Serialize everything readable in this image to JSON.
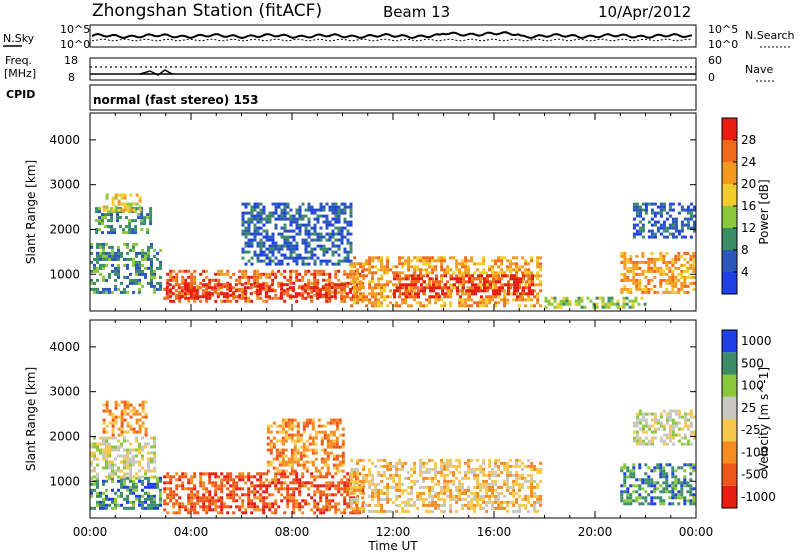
{
  "header": {
    "station": "Zhongshan Station (fitACF)",
    "beam": "Beam 13",
    "date": "10/Apr/2012"
  },
  "noise_panel": {
    "left_label": "N.Sky",
    "left_ticks": [
      "10^5",
      "10^0"
    ],
    "right_label": "N.Search",
    "right_ticks": [
      "10^5",
      "10^0"
    ]
  },
  "freq_panel": {
    "left_label_1": "Freq.",
    "left_label_2": "[MHz]",
    "left_ticks": [
      "18",
      "8"
    ],
    "right_label": "Nave",
    "right_ticks": [
      "60",
      "0"
    ]
  },
  "cpid": {
    "label": "CPID",
    "mode": "normal (fast stereo) 153"
  },
  "x_axis": {
    "ticks": [
      "00:00",
      "04:00",
      "08:00",
      "12:00",
      "16:00",
      "20:00",
      "00:00"
    ],
    "label": "Time UT"
  },
  "colors": {
    "power": [
      "#1f3fe8",
      "#2a57b8",
      "#3c8c68",
      "#8cc83c",
      "#f2cc2a",
      "#f39a1e",
      "#f06a1c",
      "#e81c12"
    ],
    "velocity": [
      "#e81c12",
      "#f0561a",
      "#f48c20",
      "#f8c84c",
      "#c8c8c0",
      "#8cc83c",
      "#3c8c68",
      "#1f3fe8"
    ]
  },
  "chart_data": [
    {
      "type": "heatmap",
      "quantity": "Power",
      "ylabel": "Slant Range [km]",
      "y_ticks": [
        1000,
        2000,
        3000,
        4000
      ],
      "ylim": [
        180,
        4600
      ],
      "xlim_hours": [
        0,
        24
      ],
      "colorbar_label": "Power [dB]",
      "colorbar_ticks": [
        4,
        8,
        12,
        16,
        20,
        24,
        28
      ],
      "regions": [
        {
          "t0": 0.0,
          "t1": 2.8,
          "r0": 600,
          "r1": 1700,
          "level": 2
        },
        {
          "t0": 0.2,
          "t1": 2.4,
          "r0": 1900,
          "r1": 2500,
          "level": 2
        },
        {
          "t0": 0.5,
          "t1": 2.0,
          "r0": 2400,
          "r1": 2800,
          "level": 4
        },
        {
          "t0": 2.9,
          "t1": 10.8,
          "r0": 400,
          "r1": 1100,
          "level": 6
        },
        {
          "t0": 3.0,
          "t1": 10.5,
          "r0": 500,
          "r1": 800,
          "level": 7
        },
        {
          "t0": 6.0,
          "t1": 10.3,
          "r0": 1200,
          "r1": 2600,
          "level": 1
        },
        {
          "t0": 10.3,
          "t1": 17.8,
          "r0": 300,
          "r1": 1400,
          "level": 5
        },
        {
          "t0": 12.0,
          "t1": 17.5,
          "r0": 500,
          "r1": 1000,
          "level": 7
        },
        {
          "t0": 18.0,
          "t1": 22.0,
          "r0": 250,
          "r1": 500,
          "level": 3
        },
        {
          "t0": 21.0,
          "t1": 23.9,
          "r0": 600,
          "r1": 1500,
          "level": 5
        },
        {
          "t0": 21.5,
          "t1": 23.9,
          "r0": 1800,
          "r1": 2600,
          "level": 1
        }
      ]
    },
    {
      "type": "heatmap",
      "quantity": "Velocity",
      "ylabel": "Slant Range [km]",
      "y_ticks": [
        1000,
        2000,
        3000,
        4000
      ],
      "ylim": [
        180,
        4600
      ],
      "xlim_hours": [
        0,
        24
      ],
      "colorbar_label": "Velocity [m s^-1]",
      "colorbar_ticks": [
        1000,
        500,
        100,
        25,
        -25,
        -100,
        -500,
        -1000
      ],
      "regions": [
        {
          "t0": 0.0,
          "t1": 2.8,
          "r0": 400,
          "r1": 1100,
          "level": 6
        },
        {
          "t0": 0.0,
          "t1": 2.6,
          "r0": 1100,
          "r1": 2000,
          "level": 4
        },
        {
          "t0": 0.5,
          "t1": 2.2,
          "r0": 2000,
          "r1": 2800,
          "level": 2
        },
        {
          "t0": 2.9,
          "t1": 10.8,
          "r0": 300,
          "r1": 1200,
          "level": 1
        },
        {
          "t0": 7.0,
          "t1": 10.0,
          "r0": 1200,
          "r1": 2400,
          "level": 2
        },
        {
          "t0": 10.3,
          "t1": 17.8,
          "r0": 300,
          "r1": 1500,
          "level": 3
        },
        {
          "t0": 21.0,
          "t1": 23.9,
          "r0": 500,
          "r1": 1400,
          "level": 6
        },
        {
          "t0": 21.5,
          "t1": 23.9,
          "r0": 1800,
          "r1": 2600,
          "level": 4
        }
      ]
    }
  ]
}
